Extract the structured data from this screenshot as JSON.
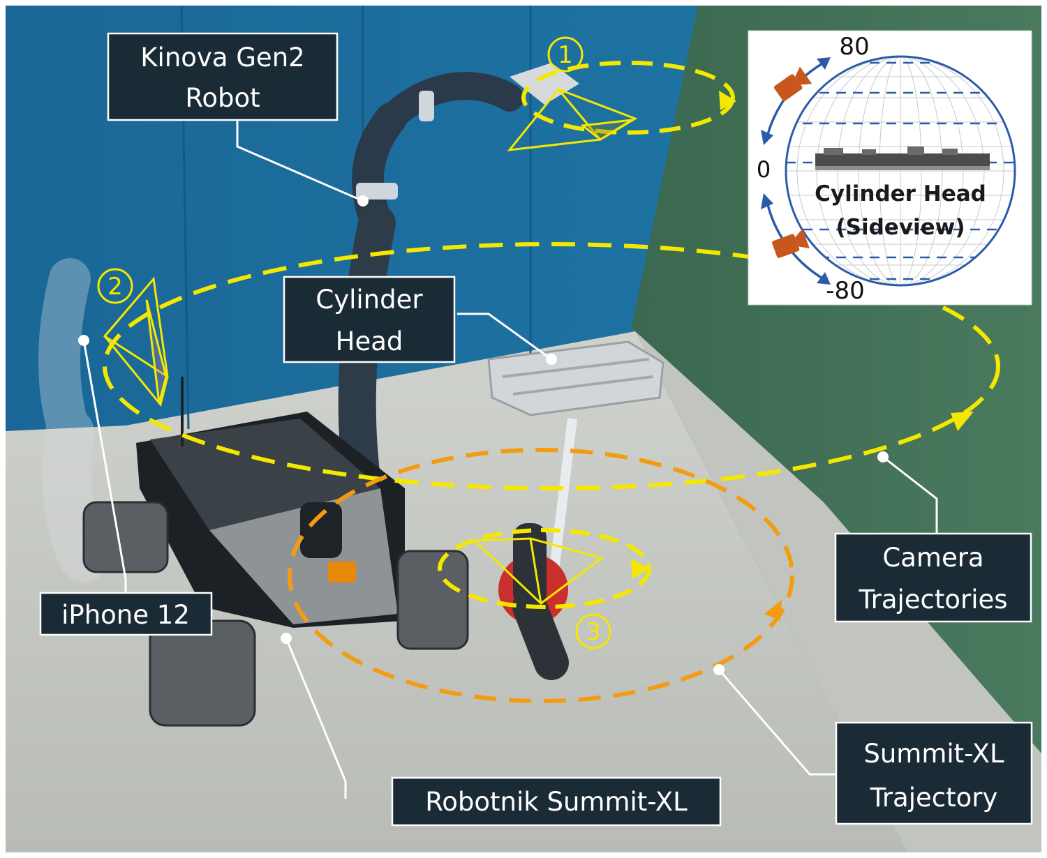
{
  "labels": {
    "kinova_line1": "Kinova Gen2",
    "kinova_line2": "Robot",
    "cylinder_line1": "Cylinder",
    "cylinder_line2": "Head",
    "iphone": "iPhone 12",
    "robotnik": "Robotnik Summit-XL",
    "camera_line1": "Camera",
    "camera_line2": "Trajectories",
    "summit_line1": "Summit-XL",
    "summit_line2": "Trajectory"
  },
  "markers": {
    "one": "1",
    "two": "2",
    "three": "3"
  },
  "inset": {
    "title_line1": "Cylinder Head",
    "title_line2": "(Sideview)",
    "angle_top": "80",
    "angle_mid": "0",
    "angle_bottom": "-80"
  },
  "colors": {
    "wall_blue": "#1e6fa0",
    "wall_green": "#3f6e55",
    "floor": "#c9ccc6",
    "yellow_trajectory": "#f5e800",
    "orange_trajectory": "#f39c12",
    "label_box": "#1b2b35",
    "inset_blue": "#2b5aa8",
    "camera_orange": "#c8571e"
  }
}
